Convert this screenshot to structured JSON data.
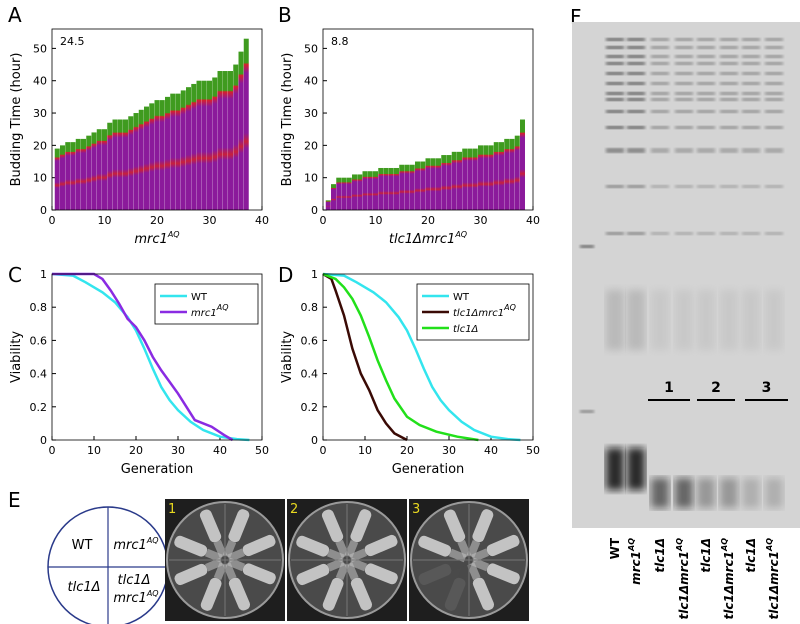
{
  "panel_labels": [
    "A",
    "B",
    "C",
    "D",
    "E",
    "F"
  ],
  "chart_data": [
    {
      "type": "bar",
      "annotation": "24.5",
      "y_label": "Budding Time (hour)",
      "x_label": "mrc1",
      "x_label_sup": "AQ",
      "color": "#8b1a9b",
      "top_color": "#3f9b1f",
      "x": [
        1,
        2,
        3,
        4,
        5,
        6,
        7,
        8,
        9,
        10,
        11,
        12,
        13,
        14,
        15,
        16,
        17,
        18,
        19,
        20,
        21,
        22,
        23,
        24,
        25,
        26,
        27,
        28,
        29,
        30,
        31,
        32,
        33,
        34,
        35,
        36,
        37
      ],
      "values": [
        19,
        20,
        21,
        21,
        22,
        22,
        23,
        24,
        25,
        25,
        27,
        28,
        28,
        28,
        29,
        30,
        31,
        32,
        33,
        34,
        34,
        35,
        36,
        36,
        37,
        38,
        39,
        40,
        40,
        40,
        41,
        43,
        43,
        43,
        45,
        49,
        53
      ],
      "xlim": [
        0,
        40
      ],
      "xticks": [
        0,
        10,
        20,
        30,
        40
      ],
      "ylim": [
        0,
        56
      ],
      "yticks": [
        0,
        10,
        20,
        30,
        40,
        50
      ]
    },
    {
      "type": "bar",
      "annotation": "8.8",
      "y_label": "Budding Time (hour)",
      "x_label": "tlc1Δmrc1",
      "x_label_sup": "AQ",
      "color": "#8b1a9b",
      "top_color": "#3f9b1f",
      "x": [
        1,
        2,
        3,
        4,
        5,
        6,
        7,
        8,
        9,
        10,
        11,
        12,
        13,
        14,
        15,
        16,
        17,
        18,
        19,
        20,
        21,
        22,
        23,
        24,
        25,
        26,
        27,
        28,
        29,
        30,
        31,
        32,
        33,
        34,
        35,
        36,
        37,
        38
      ],
      "values": [
        3,
        8,
        10,
        10,
        10,
        11,
        11,
        12,
        12,
        12,
        13,
        13,
        13,
        13,
        14,
        14,
        14,
        15,
        15,
        16,
        16,
        16,
        17,
        17,
        18,
        18,
        19,
        19,
        19,
        20,
        20,
        20,
        21,
        21,
        22,
        22,
        23,
        28
      ],
      "xlim": [
        0,
        40
      ],
      "xticks": [
        0,
        10,
        20,
        30,
        40
      ],
      "ylim": [
        0,
        56
      ],
      "yticks": [
        0,
        10,
        20,
        30,
        40,
        50
      ]
    },
    {
      "type": "line",
      "y_label": "Viability",
      "x_label": "Generation",
      "legend": "upper right",
      "xlim": [
        0,
        50
      ],
      "xticks": [
        0,
        10,
        20,
        30,
        40,
        50
      ],
      "ylim": [
        0,
        1
      ],
      "yticks": [
        0,
        0.2,
        0.4,
        0.6,
        0.8,
        1
      ],
      "series": [
        {
          "name": "WT",
          "color": "#33e5ee",
          "x": [
            0,
            5,
            8,
            10,
            12,
            15,
            18,
            20,
            22,
            24,
            26,
            28,
            30,
            33,
            36,
            40,
            44,
            47
          ],
          "values": [
            1,
            0.99,
            0.95,
            0.92,
            0.89,
            0.83,
            0.74,
            0.66,
            0.55,
            0.43,
            0.32,
            0.24,
            0.18,
            0.11,
            0.06,
            0.02,
            0.005,
            0
          ]
        },
        {
          "name": "mrc1",
          "name_sup": "AQ",
          "color": "#8a2be2",
          "x": [
            0,
            10,
            12,
            14,
            16,
            18,
            20,
            22,
            24,
            26,
            28,
            30,
            32,
            34,
            38,
            41,
            43
          ],
          "values": [
            1,
            1,
            0.97,
            0.9,
            0.82,
            0.73,
            0.68,
            0.6,
            0.5,
            0.42,
            0.35,
            0.28,
            0.2,
            0.12,
            0.08,
            0.03,
            0
          ]
        }
      ]
    },
    {
      "type": "line",
      "y_label": "Viability",
      "x_label": "Generation",
      "legend": "upper right",
      "xlim": [
        0,
        50
      ],
      "xticks": [
        0,
        10,
        20,
        30,
        40,
        50
      ],
      "ylim": [
        0,
        1
      ],
      "yticks": [
        0,
        0.2,
        0.4,
        0.6,
        0.8,
        1
      ],
      "series": [
        {
          "name": "WT",
          "color": "#33e5ee",
          "x": [
            0,
            5,
            8,
            10,
            12,
            15,
            18,
            20,
            22,
            24,
            26,
            28,
            30,
            33,
            36,
            40,
            44,
            47
          ],
          "values": [
            1,
            0.99,
            0.95,
            0.92,
            0.89,
            0.83,
            0.74,
            0.66,
            0.55,
            0.43,
            0.32,
            0.24,
            0.18,
            0.11,
            0.06,
            0.02,
            0.005,
            0
          ]
        },
        {
          "name": "tlc1Δmrc1",
          "name_sup": "AQ",
          "color": "#3a0a05",
          "x": [
            0,
            2,
            3,
            5,
            7,
            9,
            11,
            13,
            15,
            17,
            20
          ],
          "values": [
            1,
            0.97,
            0.9,
            0.75,
            0.55,
            0.4,
            0.3,
            0.18,
            0.1,
            0.04,
            0
          ]
        },
        {
          "name": "tlc1Δ",
          "color": "#22e01a",
          "x": [
            0,
            3,
            5,
            7,
            9,
            11,
            13,
            15,
            17,
            20,
            23,
            27,
            32,
            37
          ],
          "values": [
            1,
            0.97,
            0.92,
            0.85,
            0.75,
            0.62,
            0.48,
            0.36,
            0.25,
            0.14,
            0.09,
            0.05,
            0.02,
            0
          ]
        }
      ]
    }
  ],
  "panel_e": {
    "top_left": "WT",
    "top_right": "mrc1",
    "top_right_sup": "AQ",
    "bottom_left": "tlc1Δ",
    "bottom_right_line1": "tlc1Δ",
    "bottom_right_line2": "mrc1",
    "bottom_right_line2_sup": "AQ",
    "plates": [
      "1",
      "2",
      "3"
    ]
  },
  "panel_f": {
    "groups": [
      "1",
      "2",
      "3"
    ],
    "lanes": [
      {
        "text": "WT"
      },
      {
        "text": "mrc1",
        "sup": "AQ"
      },
      {
        "text": "tlc1Δ"
      },
      {
        "text": "tlc1Δmrc1",
        "sup": "AQ"
      },
      {
        "text": "tlc1Δ"
      },
      {
        "text": "tlc1Δmrc1",
        "sup": "AQ"
      },
      {
        "text": "tlc1Δ"
      },
      {
        "text": "tlc1Δmrc1",
        "sup": "AQ"
      }
    ]
  }
}
